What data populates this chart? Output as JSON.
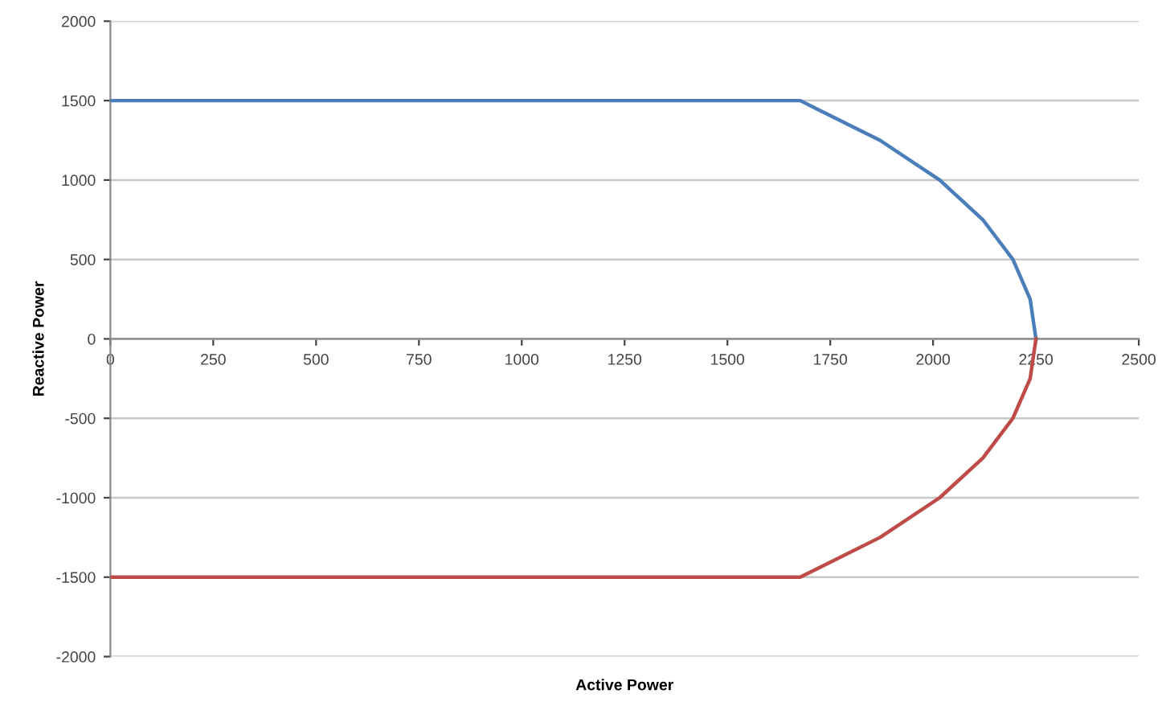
{
  "chart_data": {
    "type": "line",
    "xlabel": "Active Power",
    "ylabel": "Reactive Power",
    "xlim": [
      0,
      2500
    ],
    "xticks": [
      0,
      250,
      500,
      750,
      1000,
      1250,
      1500,
      1750,
      2000,
      2250,
      2500
    ],
    "ylim": [
      -2000,
      2000
    ],
    "yticks": [
      -2000,
      -1500,
      -1000,
      -500,
      0,
      500,
      1000,
      1500,
      2000
    ],
    "grid": "y",
    "marker": "none",
    "line_style": "solid",
    "series": [
      {
        "color": "#4a7ebb",
        "x": [
          0,
          1677,
          1871,
          2016,
          2121,
          2194,
          2236,
          2250
        ],
        "values": [
          1500,
          1500,
          1250,
          1000,
          750,
          500,
          250,
          0
        ]
      },
      {
        "color": "#be4b48",
        "x": [
          0,
          1677,
          1871,
          2016,
          2121,
          2194,
          2236,
          2250
        ],
        "values": [
          -1500,
          -1500,
          -1250,
          -1000,
          -750,
          -500,
          -250,
          0
        ]
      }
    ]
  }
}
